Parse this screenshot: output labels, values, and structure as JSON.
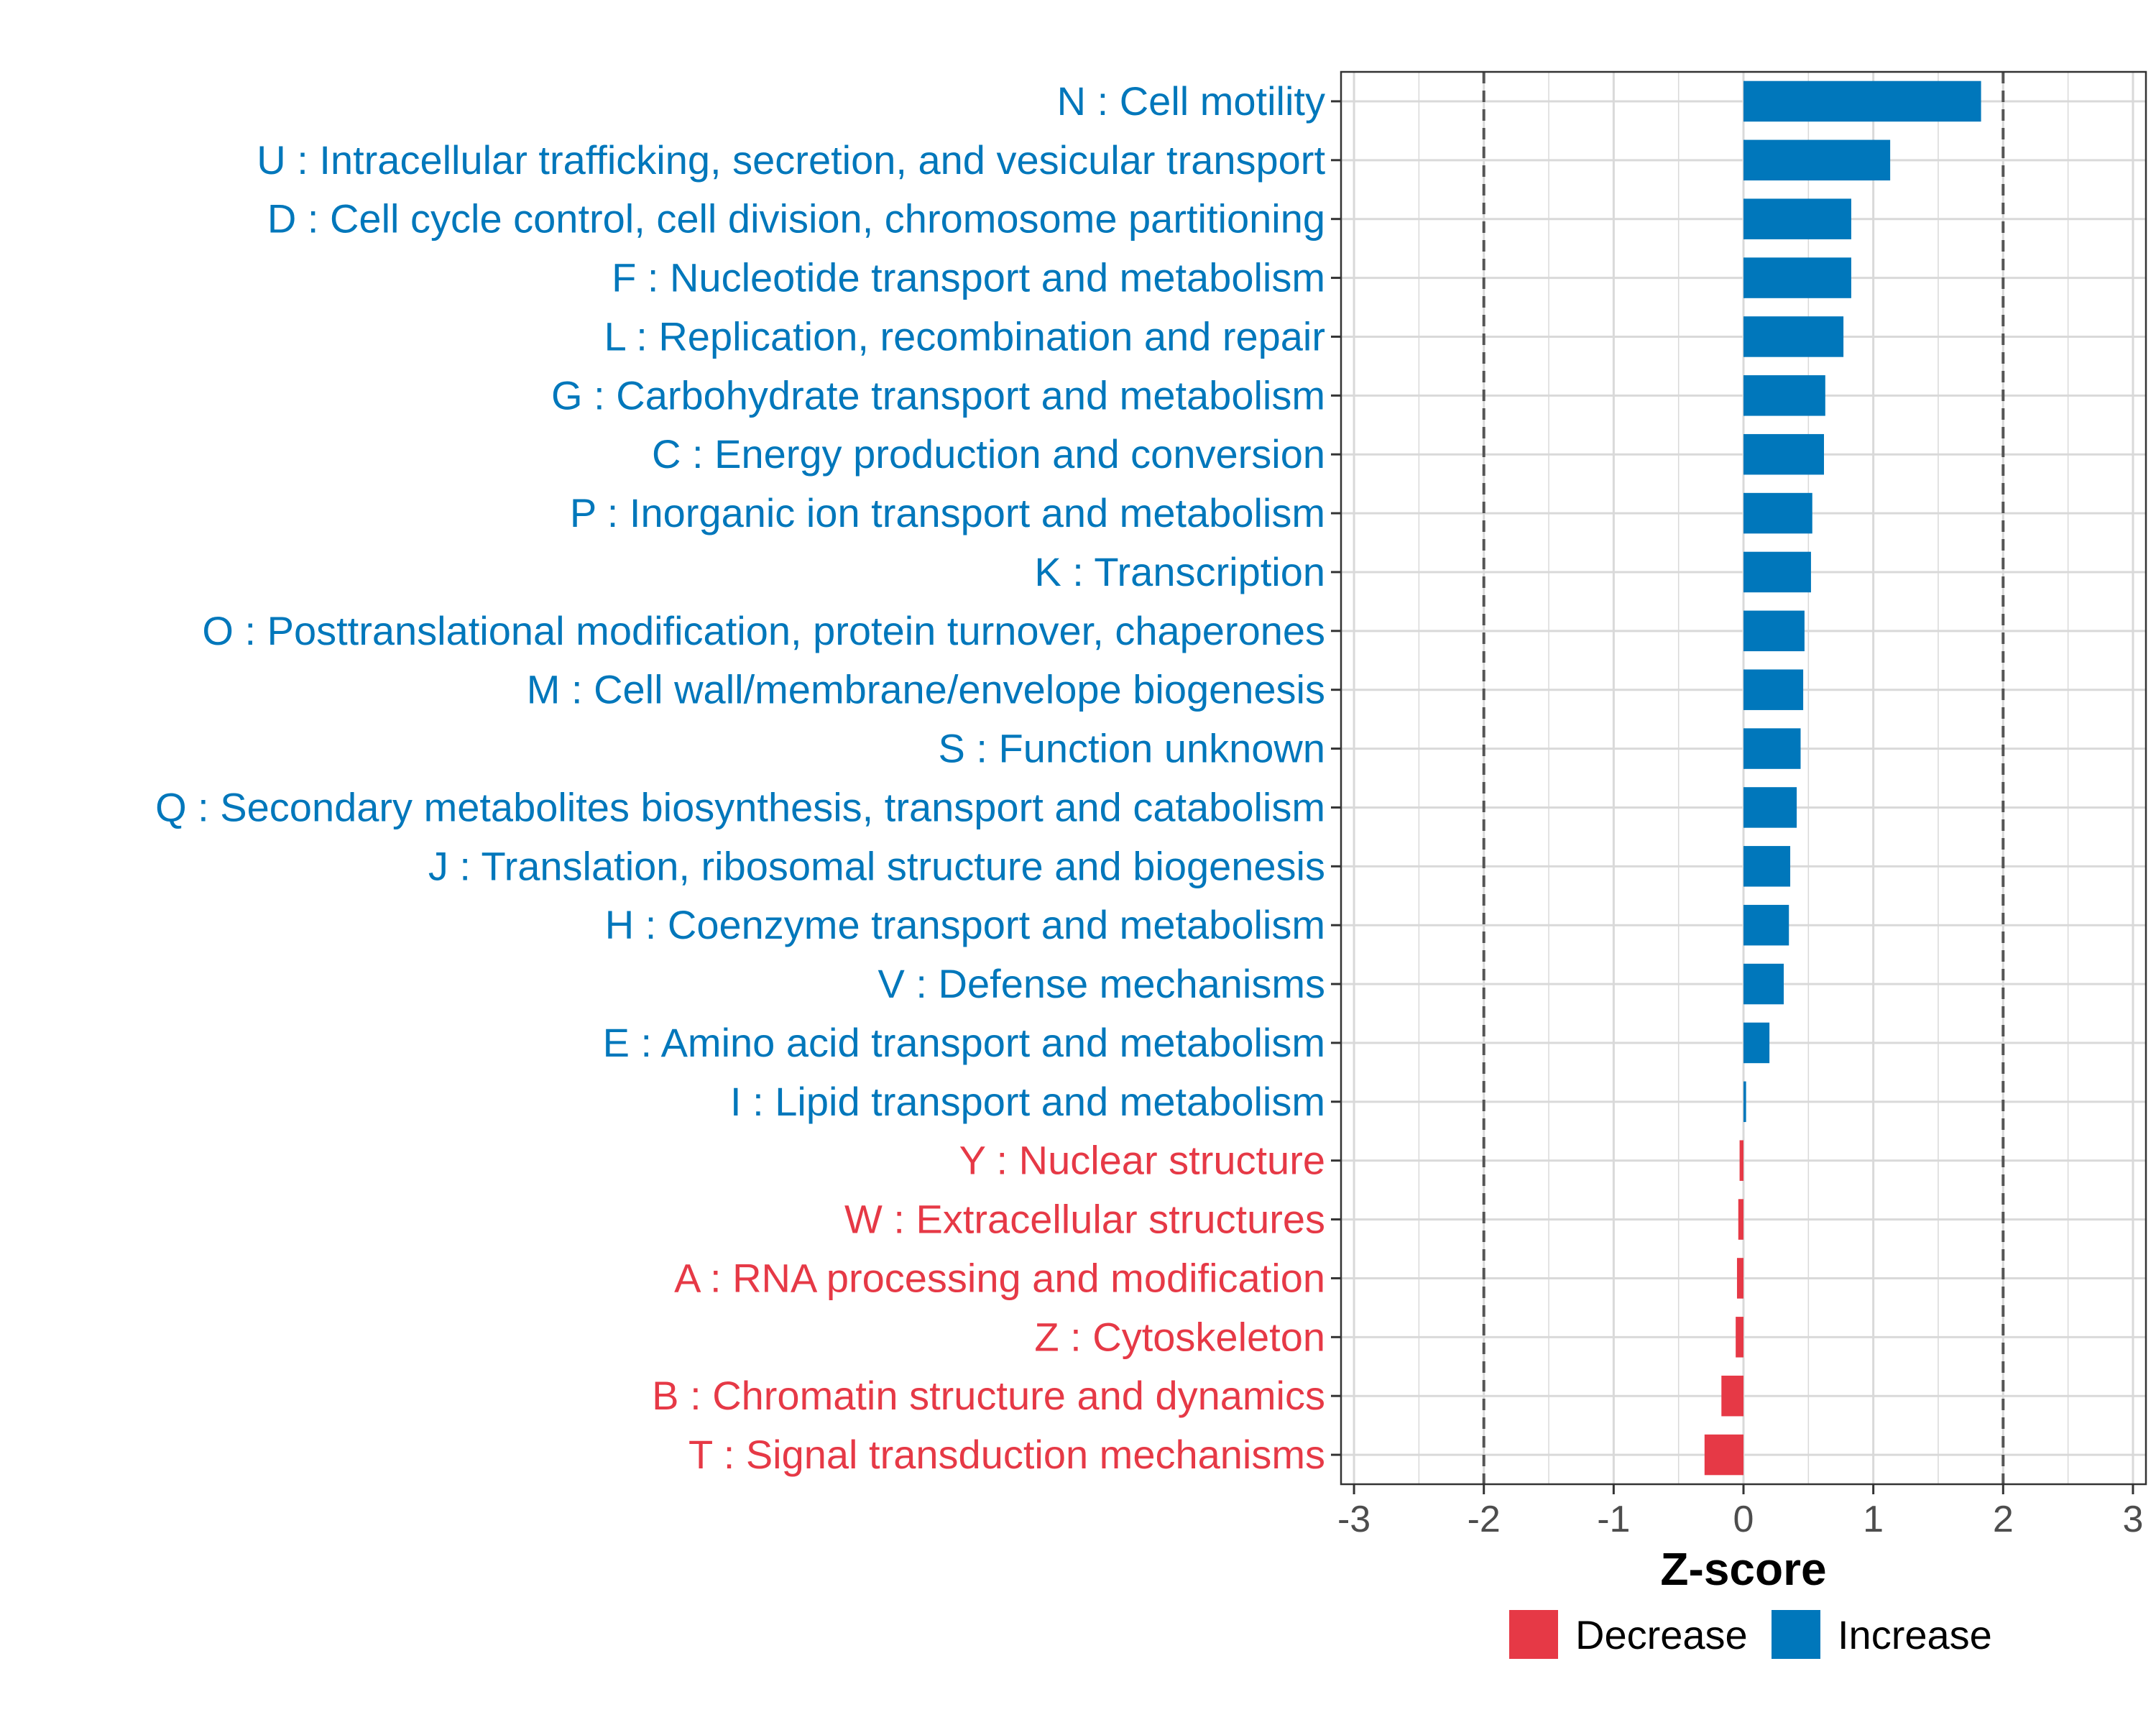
{
  "chart_data": {
    "type": "bar",
    "orientation": "horizontal",
    "xlabel": "Z-score",
    "xlim": [
      -3.1,
      3.1
    ],
    "xticks": [
      -3,
      -2,
      -1,
      0,
      1,
      2,
      3
    ],
    "xtick_labels": [
      "-3",
      "-2",
      "-1",
      "0",
      "1",
      "2",
      "3"
    ],
    "reference_lines": [
      -2,
      2
    ],
    "grid": true,
    "colors": {
      "Increase": "#0077bb",
      "Decrease": "#e63946",
      "refline": "#555555",
      "grid": "#d9d9d9",
      "frame": "#333333"
    },
    "categories": [
      {
        "label": "N : Cell motility",
        "value": 1.83,
        "direction": "Increase"
      },
      {
        "label": "U : Intracellular trafficking, secretion, and vesicular transport",
        "value": 1.13,
        "direction": "Increase"
      },
      {
        "label": "D : Cell cycle control, cell division, chromosome partitioning",
        "value": 0.83,
        "direction": "Increase"
      },
      {
        "label": "F : Nucleotide transport and metabolism",
        "value": 0.83,
        "direction": "Increase"
      },
      {
        "label": "L : Replication, recombination and repair",
        "value": 0.77,
        "direction": "Increase"
      },
      {
        "label": "G : Carbohydrate transport and metabolism",
        "value": 0.63,
        "direction": "Increase"
      },
      {
        "label": "C : Energy production and conversion",
        "value": 0.62,
        "direction": "Increase"
      },
      {
        "label": "P : Inorganic ion transport and metabolism",
        "value": 0.53,
        "direction": "Increase"
      },
      {
        "label": "K : Transcription",
        "value": 0.52,
        "direction": "Increase"
      },
      {
        "label": "O : Posttranslational modification, protein turnover, chaperones",
        "value": 0.47,
        "direction": "Increase"
      },
      {
        "label": "M : Cell wall/membrane/envelope biogenesis",
        "value": 0.46,
        "direction": "Increase"
      },
      {
        "label": "S : Function unknown",
        "value": 0.44,
        "direction": "Increase"
      },
      {
        "label": "Q : Secondary metabolites biosynthesis, transport and catabolism",
        "value": 0.41,
        "direction": "Increase"
      },
      {
        "label": "J : Translation, ribosomal structure and biogenesis",
        "value": 0.36,
        "direction": "Increase"
      },
      {
        "label": "H : Coenzyme transport and metabolism",
        "value": 0.35,
        "direction": "Increase"
      },
      {
        "label": "V : Defense mechanisms",
        "value": 0.31,
        "direction": "Increase"
      },
      {
        "label": "E : Amino acid transport and metabolism",
        "value": 0.2,
        "direction": "Increase"
      },
      {
        "label": "I : Lipid transport and metabolism",
        "value": 0.02,
        "direction": "Increase"
      },
      {
        "label": "Y : Nuclear structure",
        "value": -0.03,
        "direction": "Decrease"
      },
      {
        "label": "W : Extracellular structures",
        "value": -0.04,
        "direction": "Decrease"
      },
      {
        "label": "A : RNA processing and modification",
        "value": -0.05,
        "direction": "Decrease"
      },
      {
        "label": "Z : Cytoskeleton",
        "value": -0.06,
        "direction": "Decrease"
      },
      {
        "label": "B : Chromatin structure and dynamics",
        "value": -0.17,
        "direction": "Decrease"
      },
      {
        "label": "T : Signal transduction mechanisms",
        "value": -0.3,
        "direction": "Decrease"
      }
    ],
    "legend": {
      "position": "bottom",
      "entries": [
        {
          "name": "Decrease",
          "label": "Decrease"
        },
        {
          "name": "Increase",
          "label": "Increase"
        }
      ]
    }
  }
}
